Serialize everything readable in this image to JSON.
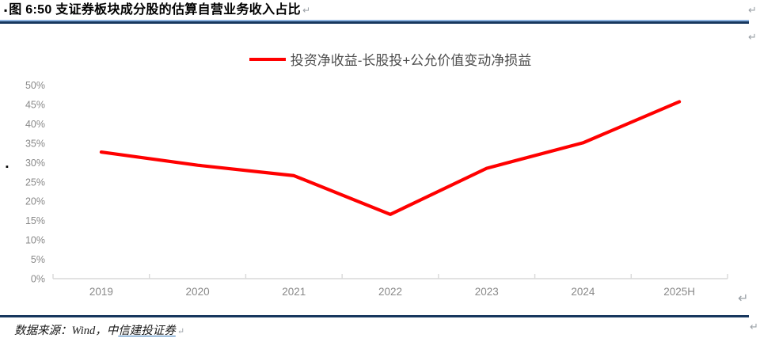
{
  "header": {
    "bullet": "▪",
    "title": "图 6:50 支证券板块成分股的估算自营业务收入占比",
    "paragraph_mark": "↵"
  },
  "legend": {
    "label": "投资净收益-长股投+公允价值变动净损益"
  },
  "chart_data": {
    "type": "line",
    "categories": [
      "2019",
      "2020",
      "2021",
      "2022",
      "2023",
      "2024",
      "2025H"
    ],
    "series": [
      {
        "name": "投资净收益-长股投+公允价值变动净损益",
        "color": "#ff0000",
        "values": [
          32.7,
          29.3,
          26.6,
          16.6,
          28.5,
          35.1,
          45.7
        ]
      }
    ],
    "title": "图 6:50 支证券板块成分股的估算自营业务收入占比",
    "xlabel": "",
    "ylabel": "",
    "ylim": [
      0,
      50
    ],
    "ytick_step": 5,
    "ytick_labels": [
      "0%",
      "5%",
      "10%",
      "15%",
      "20%",
      "25%",
      "30%",
      "35%",
      "40%",
      "45%",
      "50%"
    ],
    "grid": false,
    "legend_position": "top-center"
  },
  "footer": {
    "source_prefix": "数据来源：Wind，中",
    "source_link": "信建投证券",
    "paragraph_mark": "↵"
  },
  "marks": {
    "return_mark": "↵",
    "anchor_square": "▪"
  },
  "colors": {
    "accent_blue_dark": "#17375e",
    "accent_blue_light": "#8db4e2",
    "line_red": "#ff0000",
    "axis_grey": "#d9d9d9",
    "label_grey": "#898989",
    "link_blue": "#2e74b5"
  }
}
